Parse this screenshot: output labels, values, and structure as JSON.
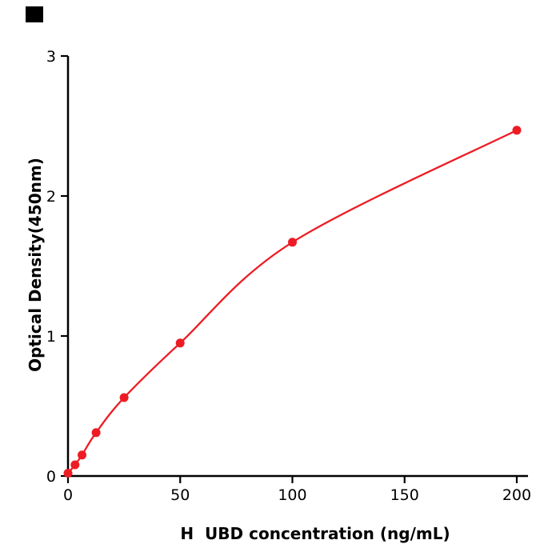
{
  "page": {
    "background": "#ffffff"
  },
  "corner_mark": {
    "color": "#000000"
  },
  "chart_data": {
    "type": "scatter",
    "curve": "smooth",
    "x": [
      0,
      3.125,
      6.25,
      12.5,
      25,
      50,
      100,
      200
    ],
    "y": [
      0.02,
      0.08,
      0.15,
      0.31,
      0.56,
      0.95,
      1.67,
      2.47
    ],
    "title": "",
    "xlabel": "H  UBD concentration (ng/mL)",
    "ylabel": "Optical Density(450nm)",
    "xlim": [
      0,
      205
    ],
    "ylim": [
      0,
      3
    ],
    "xticks": [
      0,
      50,
      100,
      150,
      200
    ],
    "yticks": [
      0,
      1,
      2,
      3
    ],
    "grid": false,
    "legend": null,
    "marker_color": "#ed1c24",
    "line_color": "#ed1c24",
    "axis_color": "#000000"
  }
}
